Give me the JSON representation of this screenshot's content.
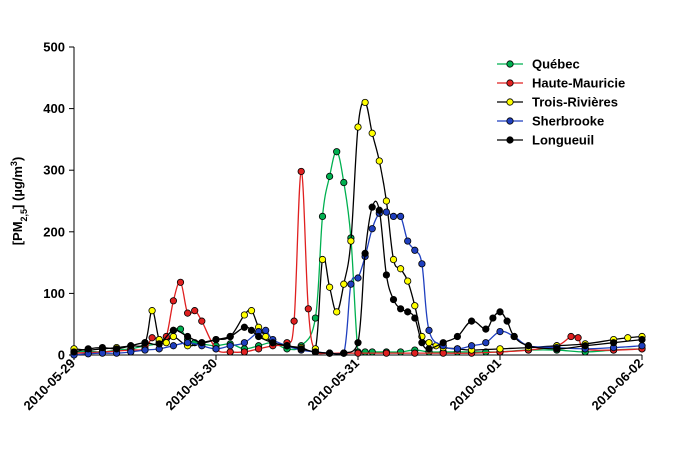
{
  "chart_data": {
    "type": "line",
    "title": "",
    "xlabel": "",
    "ylabel": {
      "prefix": "[PM",
      "sub": "2,5",
      "middle": "] (µg/m",
      "sup": "3",
      "suffix": ")"
    },
    "ylabel_text": "[PM2,5] (µg/m3)",
    "x_ticks": [
      "2010-05-29",
      "2010-05-30",
      "2010-05-31",
      "2010-06-01",
      "2010-06-02"
    ],
    "x_range": [
      0,
      4
    ],
    "x_unit_note": "x values are days after 2010-05-29 00:00",
    "ylim": [
      0,
      500
    ],
    "y_ticks": [
      "0",
      "100",
      "200",
      "300",
      "400",
      "500"
    ],
    "grid": false,
    "legend_placement": "top-right",
    "series": [
      {
        "name": "Québec",
        "color": "#00b050",
        "x": [
          0.0,
          0.1,
          0.2,
          0.3,
          0.4,
          0.5,
          0.6,
          0.7,
          0.75,
          0.8,
          0.85,
          0.9,
          1.0,
          1.1,
          1.2,
          1.3,
          1.4,
          1.5,
          1.6,
          1.7,
          1.75,
          1.8,
          1.85,
          1.9,
          1.95,
          2.0,
          2.05,
          2.1,
          2.2,
          2.3,
          2.4,
          2.5,
          2.6,
          2.7,
          2.8,
          2.9,
          3.0,
          3.2,
          3.4,
          3.6,
          3.8,
          4.0
        ],
        "values": [
          5,
          6,
          5,
          8,
          10,
          15,
          20,
          40,
          42,
          25,
          20,
          18,
          15,
          18,
          10,
          15,
          20,
          10,
          15,
          60,
          225,
          290,
          330,
          280,
          190,
          5,
          5,
          5,
          5,
          5,
          8,
          5,
          5,
          5,
          5,
          5,
          5,
          8,
          8,
          5,
          8,
          10
        ]
      },
      {
        "name": "Haute-Mauricie",
        "color": "#e02020",
        "x": [
          0.0,
          0.2,
          0.4,
          0.5,
          0.55,
          0.6,
          0.65,
          0.7,
          0.75,
          0.8,
          0.85,
          0.9,
          1.0,
          1.1,
          1.2,
          1.3,
          1.4,
          1.5,
          1.55,
          1.6,
          1.65,
          1.7,
          1.8,
          1.9,
          2.0,
          2.2,
          2.4,
          2.6,
          2.8,
          3.0,
          3.2,
          3.4,
          3.5,
          3.55,
          3.6,
          3.8,
          4.0
        ],
        "values": [
          3,
          5,
          8,
          10,
          28,
          25,
          30,
          88,
          118,
          68,
          72,
          55,
          10,
          5,
          5,
          10,
          15,
          20,
          55,
          298,
          75,
          5,
          3,
          3,
          3,
          3,
          3,
          3,
          3,
          5,
          8,
          15,
          30,
          28,
          10,
          8,
          10
        ]
      },
      {
        "name": "Trois-Rivières",
        "color": "#ffff00",
        "x": [
          0.0,
          0.1,
          0.2,
          0.3,
          0.4,
          0.5,
          0.55,
          0.6,
          0.65,
          0.7,
          0.8,
          0.9,
          1.0,
          1.1,
          1.2,
          1.25,
          1.3,
          1.35,
          1.4,
          1.5,
          1.6,
          1.7,
          1.75,
          1.8,
          1.85,
          1.9,
          1.95,
          2.0,
          2.05,
          2.1,
          2.15,
          2.2,
          2.25,
          2.3,
          2.35,
          2.4,
          2.45,
          2.5,
          2.55,
          2.6,
          2.7,
          2.8,
          3.0,
          3.2,
          3.4,
          3.6,
          3.8,
          3.9,
          4.0
        ],
        "values": [
          10,
          8,
          10,
          12,
          15,
          20,
          72,
          25,
          20,
          30,
          15,
          20,
          25,
          30,
          65,
          72,
          45,
          30,
          20,
          15,
          12,
          10,
          155,
          110,
          70,
          115,
          185,
          370,
          410,
          360,
          315,
          250,
          155,
          140,
          120,
          80,
          30,
          20,
          15,
          12,
          10,
          8,
          10,
          12,
          15,
          18,
          25,
          28,
          30
        ]
      },
      {
        "name": "Sherbrooke",
        "color": "#1f3fbf",
        "x": [
          0.0,
          0.1,
          0.2,
          0.3,
          0.4,
          0.5,
          0.6,
          0.7,
          0.8,
          0.9,
          1.0,
          1.1,
          1.2,
          1.3,
          1.35,
          1.4,
          1.5,
          1.6,
          1.7,
          1.8,
          1.9,
          1.95,
          2.0,
          2.05,
          2.1,
          2.15,
          2.2,
          2.25,
          2.3,
          2.35,
          2.4,
          2.45,
          2.5,
          2.6,
          2.7,
          2.8,
          2.9,
          3.0,
          3.1,
          3.2,
          3.4,
          3.6,
          3.8,
          4.0
        ],
        "values": [
          0,
          2,
          3,
          3,
          5,
          8,
          10,
          15,
          20,
          15,
          10,
          15,
          20,
          38,
          40,
          25,
          15,
          8,
          5,
          3,
          3,
          115,
          125,
          160,
          205,
          230,
          232,
          225,
          225,
          185,
          170,
          148,
          40,
          15,
          10,
          15,
          20,
          38,
          30,
          15,
          12,
          10,
          12,
          15
        ]
      },
      {
        "name": "Longueuil",
        "color": "#000000",
        "x": [
          0.0,
          0.1,
          0.2,
          0.3,
          0.4,
          0.5,
          0.6,
          0.7,
          0.8,
          0.9,
          1.0,
          1.1,
          1.2,
          1.25,
          1.3,
          1.4,
          1.5,
          1.6,
          1.7,
          1.8,
          1.9,
          2.0,
          2.05,
          2.1,
          2.15,
          2.2,
          2.25,
          2.3,
          2.35,
          2.4,
          2.45,
          2.5,
          2.6,
          2.7,
          2.8,
          2.9,
          2.95,
          3.0,
          3.05,
          3.1,
          3.2,
          3.4,
          3.6,
          3.8,
          4.0
        ],
        "values": [
          5,
          10,
          12,
          10,
          15,
          20,
          18,
          40,
          30,
          20,
          25,
          30,
          45,
          40,
          30,
          20,
          15,
          10,
          5,
          3,
          3,
          20,
          165,
          240,
          235,
          130,
          90,
          75,
          70,
          60,
          20,
          10,
          20,
          30,
          55,
          42,
          60,
          70,
          55,
          30,
          15,
          10,
          15,
          20,
          25
        ]
      }
    ]
  }
}
